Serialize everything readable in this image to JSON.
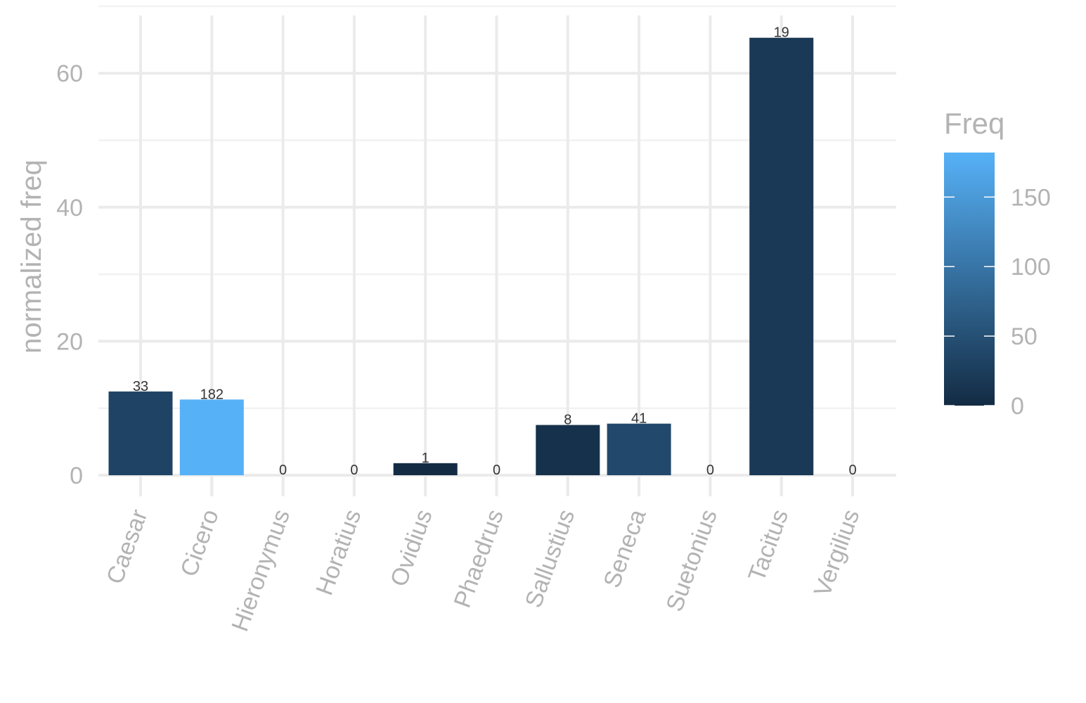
{
  "chart_data": {
    "type": "bar",
    "ylabel": "normalized freq",
    "xlabel": "",
    "categories": [
      "Caesar",
      "Cicero",
      "Hieronymus",
      "Horatius",
      "Ovidius",
      "Phaedrus",
      "Sallustius",
      "Seneca",
      "Suetonius",
      "Tacitus",
      "Vergilius"
    ],
    "values": [
      12.5,
      11.3,
      0,
      0,
      1.8,
      0,
      7.5,
      7.7,
      0,
      65.3,
      0
    ],
    "freq_labels": [
      "33",
      "182",
      "0",
      "0",
      "1",
      "0",
      "8",
      "41",
      "0",
      "19",
      "0"
    ],
    "freq": [
      33,
      182,
      0,
      0,
      1,
      0,
      8,
      41,
      0,
      19,
      0
    ],
    "ylim": [
      -3,
      68
    ],
    "yticks": [
      0,
      20,
      40,
      60
    ],
    "grid": true,
    "legend": {
      "title": "Freq",
      "position": "right",
      "ticks": [
        0,
        50,
        100,
        150
      ],
      "tick_labels": [
        "0",
        "50",
        "100",
        "150"
      ],
      "range": [
        0,
        182
      ],
      "color_low": "#132b43",
      "color_high": "#56b1f7"
    }
  }
}
